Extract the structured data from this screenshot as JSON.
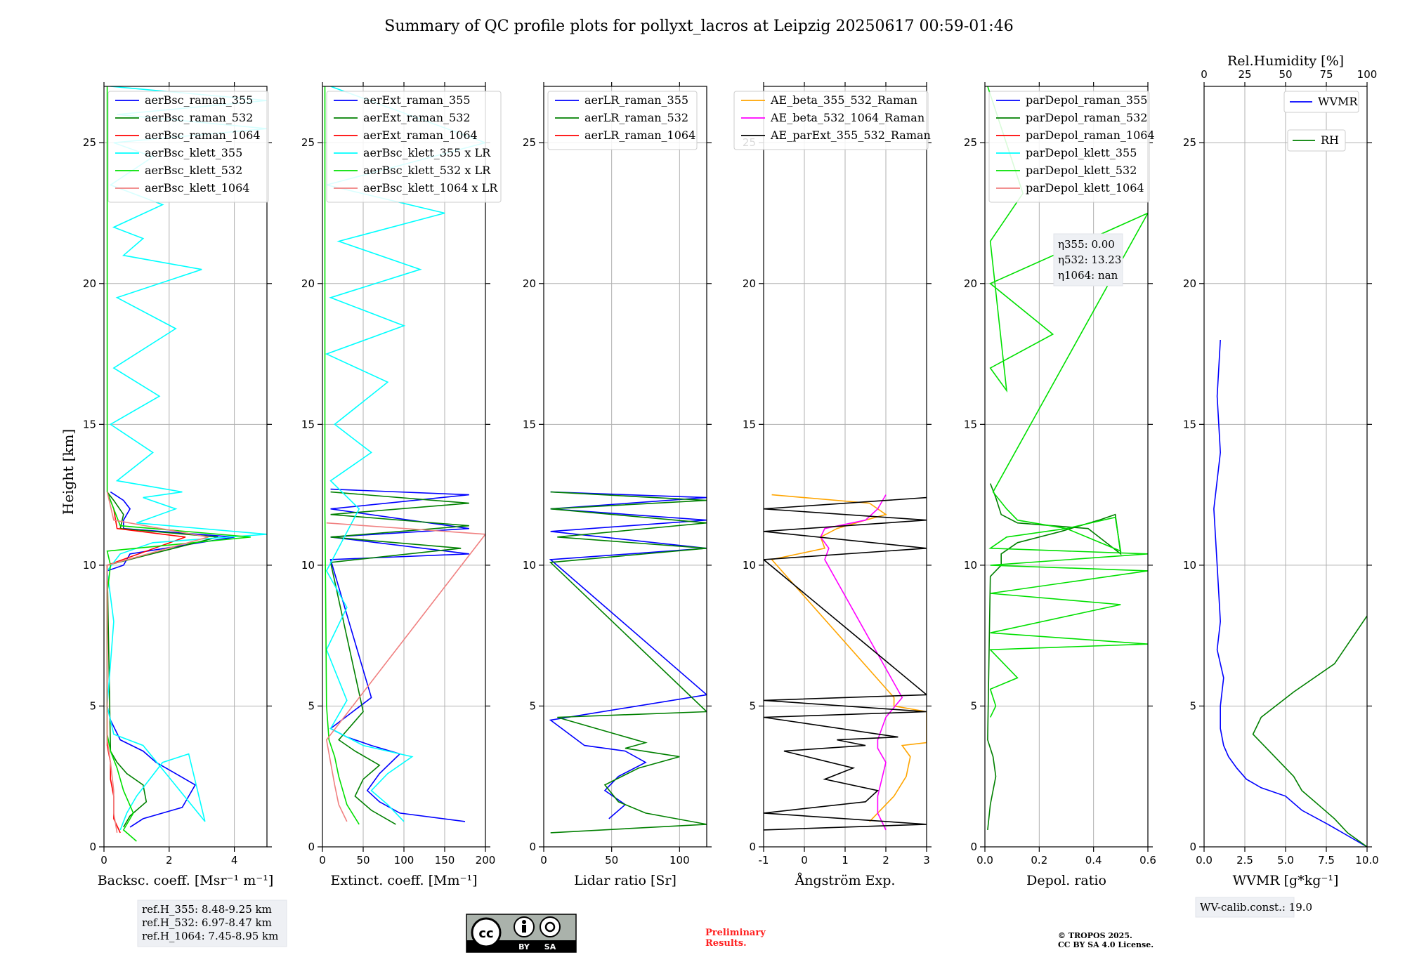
{
  "title": "Summary of QC profile plots for pollyxt_lacros at Leipzig 20250617 00:59-01:46",
  "ylabel": "Height [km]",
  "y_ticks": [
    "0",
    "5",
    "10",
    "15",
    "20",
    "25"
  ],
  "y_range": [
    0,
    27
  ],
  "panels": [
    {
      "xlabel": "Backsc. coeff. [Msr⁻¹ m⁻¹]",
      "xlim": [
        0,
        5
      ],
      "xticks": [
        0,
        2,
        4
      ],
      "legend": [
        "aerBsc_raman_355",
        "aerBsc_raman_532",
        "aerBsc_raman_1064",
        "aerBsc_klett_355",
        "aerBsc_klett_532",
        "aerBsc_klett_1064"
      ],
      "colors": [
        "#0000ff",
        "#008000",
        "#ff0000",
        "#00ffff",
        "#00e000",
        "#f08080"
      ]
    },
    {
      "xlabel": "Extinct. coeff. [Mm⁻¹]",
      "xlim": [
        0,
        200
      ],
      "xticks": [
        0,
        50,
        100,
        150,
        200
      ],
      "legend": [
        "aerExt_raman_355",
        "aerExt_raman_532",
        "aerExt_raman_1064",
        "aerBsc_klett_355 x LR",
        "aerBsc_klett_532 x LR",
        "aerBsc_klett_1064 x LR"
      ],
      "colors": [
        "#0000ff",
        "#008000",
        "#ff0000",
        "#00ffff",
        "#00e000",
        "#f08080"
      ]
    },
    {
      "xlabel": "Lidar ratio [Sr]",
      "xlim": [
        0,
        120
      ],
      "xticks": [
        0,
        50,
        100
      ],
      "legend": [
        "aerLR_raman_355",
        "aerLR_raman_532",
        "aerLR_raman_1064"
      ],
      "colors": [
        "#0000ff",
        "#008000",
        "#ff0000"
      ]
    },
    {
      "xlabel": "Ångström Exp.",
      "xlim": [
        -1,
        3
      ],
      "xticks": [
        -1,
        0,
        1,
        2,
        3
      ],
      "legend": [
        "AE_beta_355_532_Raman",
        "AE_beta_532_1064_Raman",
        "AE_parExt_355_532_Raman"
      ],
      "colors": [
        "#ffa500",
        "#ff00ff",
        "#000000"
      ]
    },
    {
      "xlabel": "Depol. ratio",
      "xlim": [
        0,
        0.6
      ],
      "xticks": [
        0.0,
        0.2,
        0.4,
        0.6
      ],
      "legend": [
        "parDepol_raman_355",
        "parDepol_raman_532",
        "parDepol_raman_1064",
        "parDepol_klett_355",
        "parDepol_klett_532",
        "parDepol_klett_1064"
      ],
      "colors": [
        "#0000ff",
        "#008000",
        "#ff0000",
        "#00ffff",
        "#00e000",
        "#f08080"
      ]
    },
    {
      "xlabel": "WVMR [g*kg⁻¹]",
      "xlim": [
        0,
        10
      ],
      "xticks": [
        0.0,
        2.5,
        5.0,
        7.5,
        10.0
      ],
      "top_label": "Rel.Humidity [%]",
      "top_ticks": [
        0,
        25,
        50,
        75,
        100
      ],
      "legend": [
        "WVMR"
      ],
      "legend2": [
        "RH"
      ],
      "colors": [
        "#0000ff",
        "#008000"
      ]
    }
  ],
  "annotations": {
    "refH": [
      "ref.H_355: 8.48-9.25 km",
      "ref.H_532: 6.97-8.47 km",
      "ref.H_1064: 7.45-8.95 km"
    ],
    "eta": [
      "η355: 0.00",
      "η532: 13.23",
      "η1064: nan"
    ],
    "wv_calib": "WV-calib.const.: 19.0",
    "preliminary": [
      "Preliminary",
      "Results."
    ],
    "copyright": [
      "© TROPOS 2025.",
      "CC BY SA 4.0 License."
    ],
    "cc_badge": [
      "BY",
      "SA"
    ]
  },
  "chart_data": [
    {
      "type": "line",
      "xlabel": "Backsc. coeff. [Msr⁻¹ m⁻¹]",
      "ylabel": "Height [km]",
      "xlim": [
        0,
        5
      ],
      "ylim": [
        0,
        27
      ],
      "series": [
        {
          "name": "aerBsc_raman_355",
          "x": [
            0.8,
            1.2,
            2.4,
            2.8,
            2.2,
            1.6,
            1.2,
            0.5,
            0.2,
            0.1,
            0.1,
            0.6,
            0.8,
            4.0,
            0.6,
            0.6,
            0.8,
            0.6,
            0.2
          ],
          "y": [
            0.7,
            1.0,
            1.4,
            2.2,
            2.6,
            3.0,
            3.4,
            3.8,
            4.5,
            5.0,
            9.8,
            10.0,
            10.4,
            11.0,
            11.3,
            11.6,
            12.0,
            12.3,
            12.6
          ]
        },
        {
          "name": "aerBsc_raman_532",
          "x": [
            0.6,
            0.8,
            1.3,
            1.2,
            0.7,
            0.4,
            0.2,
            0.1,
            3.5,
            0.5,
            0.6,
            0.3,
            0.1
          ],
          "y": [
            0.7,
            1.1,
            1.6,
            2.2,
            2.6,
            3.0,
            3.4,
            10.0,
            11.0,
            11.3,
            11.8,
            12.3,
            12.6
          ]
        },
        {
          "name": "aerBsc_raman_1064",
          "x": [
            0.5,
            0.3,
            0.3,
            0.2,
            0.2,
            0.1,
            0.1,
            2.5,
            0.4,
            0.3,
            0.1
          ],
          "y": [
            0.5,
            1.0,
            1.8,
            2.4,
            3.0,
            3.6,
            10.0,
            11.0,
            11.3,
            12.0,
            12.6
          ]
        },
        {
          "name": "aerBsc_klett_355",
          "x": [
            0.5,
            0.7,
            1.0,
            1.4,
            1.8,
            2.6,
            3.1,
            1.2,
            0.3,
            0.1,
            0.3,
            0.1,
            0.5,
            1.5,
            5.0,
            1.0,
            2.2,
            1.2,
            2.4,
            0.4,
            1.5,
            0.2,
            1.7,
            0.3,
            2.2,
            0.4,
            3.0,
            0.6,
            1.2,
            0.3,
            1.8,
            0.2,
            1.5,
            0.3,
            5.0,
            0.4,
            5.0,
            0.2
          ],
          "y": [
            0.6,
            1.2,
            1.8,
            2.4,
            3.0,
            3.3,
            0.9,
            3.6,
            4.0,
            5.0,
            8.0,
            9.8,
            10.4,
            10.8,
            11.1,
            11.5,
            12.0,
            12.4,
            12.6,
            13.0,
            14.0,
            15.0,
            16.0,
            17.0,
            18.4,
            19.5,
            20.5,
            21.0,
            21.6,
            22.0,
            22.8,
            23.5,
            24.5,
            25.0,
            25.5,
            26.0,
            26.5,
            27.0
          ]
        },
        {
          "name": "aerBsc_klett_532",
          "x": [
            1.0,
            0.6,
            0.9,
            0.6,
            0.4,
            0.2,
            0.1,
            0.1,
            0.2,
            0.1,
            4.5,
            0.5,
            0.3,
            0.1,
            0.1,
            0.1
          ],
          "y": [
            0.2,
            0.6,
            1.2,
            2.0,
            2.8,
            3.4,
            4.0,
            9.0,
            10.0,
            10.5,
            11.0,
            11.4,
            12.0,
            12.6,
            20.0,
            27.0
          ]
        },
        {
          "name": "aerBsc_klett_1064",
          "x": [
            0.4,
            0.3,
            0.3,
            0.2,
            0.1,
            0.1,
            3.2,
            0.3,
            0.1
          ],
          "y": [
            0.5,
            1.2,
            2.0,
            3.0,
            3.8,
            10.0,
            11.0,
            11.6,
            12.6
          ]
        }
      ]
    },
    {
      "type": "line",
      "xlabel": "Extinct. coeff. [Mm⁻¹]",
      "xlim": [
        0,
        200
      ],
      "ylim": [
        0,
        27
      ],
      "series": [
        {
          "name": "aerExt_raman_355",
          "x": [
            175,
            95,
            70,
            55,
            70,
            95,
            60,
            30,
            10,
            60,
            10,
            180,
            10,
            180,
            10,
            180,
            10
          ],
          "y": [
            0.9,
            1.2,
            1.6,
            2.0,
            2.6,
            3.3,
            3.6,
            3.9,
            4.2,
            5.3,
            10.2,
            10.4,
            11.0,
            11.3,
            12.0,
            12.5,
            12.7
          ]
        },
        {
          "name": "aerExt_raman_532",
          "x": [
            90,
            60,
            40,
            50,
            70,
            40,
            20,
            50,
            10,
            170,
            10,
            180,
            10,
            180,
            10
          ],
          "y": [
            0.8,
            1.3,
            1.8,
            2.4,
            2.9,
            3.4,
            3.8,
            4.8,
            10.1,
            10.6,
            11.0,
            11.4,
            11.8,
            12.2,
            12.6
          ]
        },
        {
          "name": "aerBsc_klett_355 x LR",
          "x": [
            100,
            80,
            60,
            80,
            110,
            50,
            10,
            30,
            5,
            30,
            5,
            45,
            10,
            60,
            15,
            80,
            5,
            100,
            10,
            120,
            20,
            150,
            5,
            200,
            10
          ],
          "y": [
            0.9,
            1.5,
            2.0,
            2.6,
            3.2,
            3.6,
            4.2,
            5.2,
            7.0,
            8.5,
            9.8,
            12.0,
            13.0,
            14.0,
            15.0,
            16.5,
            17.5,
            18.5,
            19.5,
            20.5,
            21.5,
            22.5,
            23.5,
            25.0,
            27.0
          ]
        },
        {
          "name": "aerBsc_klett_532 x LR",
          "x": [
            45,
            30,
            20,
            15,
            8,
            5,
            3,
            3
          ],
          "y": [
            0.8,
            1.5,
            2.5,
            3.2,
            3.8,
            5.0,
            12.0,
            27.0
          ]
        },
        {
          "name": "aerBsc_klett_1064 x LR",
          "x": [
            30,
            20,
            15,
            10,
            5,
            200,
            5
          ],
          "y": [
            0.9,
            1.5,
            2.2,
            3.0,
            3.8,
            11.1,
            11.5
          ]
        }
      ]
    },
    {
      "type": "line",
      "xlabel": "Lidar ratio [Sr]",
      "xlim": [
        0,
        120
      ],
      "ylim": [
        0,
        27
      ],
      "series": [
        {
          "name": "aerLR_raman_355",
          "x": [
            48,
            60,
            45,
            55,
            75,
            60,
            30,
            5,
            120,
            5,
            120,
            5,
            120,
            5,
            120,
            5
          ],
          "y": [
            1.0,
            1.5,
            2.0,
            2.5,
            3.0,
            3.4,
            3.6,
            4.5,
            5.4,
            10.2,
            10.6,
            11.2,
            11.6,
            12.0,
            12.4,
            12.6
          ]
        },
        {
          "name": "aerLR_raman_532",
          "x": [
            5,
            120,
            75,
            55,
            45,
            70,
            100,
            60,
            75,
            10,
            120,
            5,
            120,
            10,
            120,
            5,
            120,
            5
          ],
          "y": [
            0.5,
            0.8,
            1.2,
            1.6,
            2.2,
            2.8,
            3.2,
            3.5,
            3.7,
            4.6,
            4.8,
            10.1,
            10.6,
            11.0,
            11.5,
            12.0,
            12.3,
            12.6
          ]
        }
      ]
    },
    {
      "type": "line",
      "xlabel": "Ångström Exp.",
      "xlim": [
        -1,
        3
      ],
      "ylim": [
        0,
        27
      ],
      "series": [
        {
          "name": "AE_beta_355_532_Raman",
          "x": [
            1.6,
            2.2,
            2.5,
            2.6,
            2.4,
            3.0,
            3.0,
            2.2,
            2.2,
            -0.8,
            0.5,
            0.4,
            0.8,
            1.5,
            2.0,
            1.6,
            -0.8
          ],
          "y": [
            0.9,
            1.8,
            2.5,
            3.2,
            3.6,
            3.7,
            4.8,
            5.0,
            5.3,
            10.2,
            10.6,
            11.0,
            11.3,
            11.6,
            11.8,
            12.2,
            12.5
          ]
        },
        {
          "name": "AE_beta_532_1064_Raman",
          "x": [
            2.0,
            1.8,
            1.8,
            1.9,
            2.0,
            1.8,
            1.8,
            2.0,
            2.4,
            0.5,
            0.6,
            0.4,
            0.5,
            1.5,
            1.8,
            2.0
          ],
          "y": [
            0.6,
            1.2,
            1.8,
            2.4,
            3.0,
            3.5,
            3.8,
            4.6,
            5.3,
            10.2,
            10.6,
            11.0,
            11.3,
            11.6,
            12.0,
            12.5
          ]
        },
        {
          "name": "AE_parExt_355_532_Raman",
          "x": [
            -1,
            3,
            -1,
            1.5,
            1.8,
            0.5,
            1.2,
            -0.5,
            1.5,
            0.8,
            2.3,
            -1.0,
            3.0,
            -1.0,
            3.0,
            -1.0,
            3.0,
            -1.0,
            3.0,
            -1.0,
            3.0
          ],
          "y": [
            0.6,
            0.8,
            1.2,
            1.6,
            2.0,
            2.4,
            2.8,
            3.4,
            3.6,
            3.8,
            3.9,
            4.6,
            4.8,
            5.2,
            5.4,
            10.2,
            10.6,
            11.2,
            11.6,
            12.0,
            12.4
          ]
        }
      ]
    },
    {
      "type": "line",
      "xlabel": "Depol. ratio",
      "xlim": [
        0,
        0.6
      ],
      "ylim": [
        0,
        27
      ],
      "series": [
        {
          "name": "parDepol_raman_532",
          "x": [
            0.01,
            0.02,
            0.04,
            0.03,
            0.01,
            0.02,
            0.06,
            0.06,
            0.12,
            0.28,
            0.42,
            0.48,
            0.5,
            0.38,
            0.12,
            0.06,
            0.04,
            0.02
          ],
          "y": [
            0.6,
            1.5,
            2.5,
            3.2,
            3.8,
            9.6,
            10.0,
            10.4,
            10.8,
            11.2,
            11.6,
            11.8,
            10.4,
            11.3,
            11.5,
            11.8,
            12.4,
            12.9
          ]
        },
        {
          "name": "parDepol_klett_532",
          "x": [
            0.02,
            0.04,
            0.02,
            0.12,
            0.02,
            0.6,
            0.02,
            0.5,
            0.02,
            0.6,
            0.02,
            0.6,
            0.02,
            0.08,
            0.3,
            0.48,
            0.5,
            0.3,
            0.12,
            0.08,
            0.03,
            0.6,
            0.02,
            0.25,
            0.02,
            0.08,
            0.02,
            0.14,
            0.01
          ],
          "y": [
            4.6,
            5.0,
            5.6,
            6.0,
            7.0,
            7.2,
            7.6,
            8.6,
            9.0,
            9.8,
            10.0,
            10.4,
            10.6,
            11.0,
            11.3,
            11.7,
            10.5,
            11.3,
            11.6,
            12.0,
            12.6,
            22.5,
            20.0,
            18.2,
            17.0,
            16.2,
            21.5,
            23.2,
            27.0
          ]
        }
      ]
    },
    {
      "type": "line",
      "xlabel": "WVMR [g*kg⁻¹]",
      "top_xlabel": "Rel.Humidity [%]",
      "xlim": [
        0,
        10
      ],
      "top_xlim": [
        0,
        100
      ],
      "ylim": [
        0,
        27
      ],
      "series": [
        {
          "name": "WVMR",
          "x": [
            10.0,
            7.6,
            6.0,
            5.0,
            3.5,
            2.6,
            2.0,
            1.5,
            1.2,
            1.0,
            1.0,
            1.2,
            0.8,
            1.0,
            0.9,
            0.8,
            0.6,
            1.0,
            0.8,
            1.0
          ],
          "y": [
            0.0,
            0.8,
            1.3,
            1.8,
            2.1,
            2.4,
            2.8,
            3.2,
            3.6,
            4.2,
            5.0,
            6.0,
            7.0,
            8.0,
            9.0,
            10.0,
            12.0,
            14.0,
            16.0,
            18.0
          ]
        },
        {
          "name": "RH",
          "x": [
            100,
            88,
            80,
            70,
            60,
            55,
            50,
            40,
            30,
            35,
            55,
            80,
            100
          ],
          "y": [
            0.0,
            0.5,
            1.0,
            1.5,
            2.0,
            2.5,
            2.8,
            3.4,
            4.0,
            4.6,
            5.5,
            6.5,
            8.2
          ]
        }
      ]
    }
  ]
}
